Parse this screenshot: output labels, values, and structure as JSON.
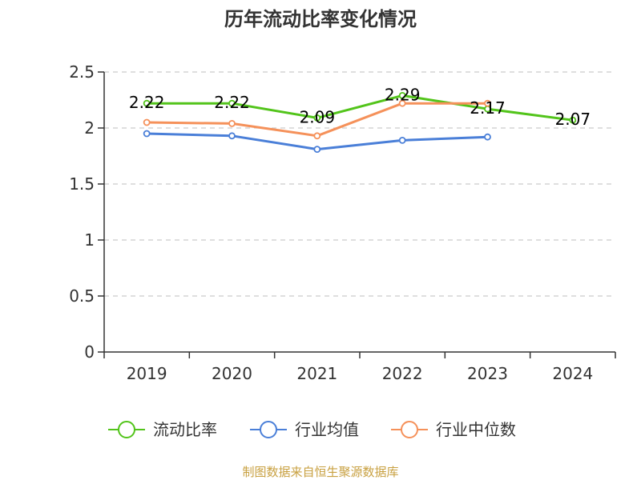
{
  "chart_data": {
    "type": "line",
    "title": "历年流动比率变化情况",
    "categories": [
      "2019",
      "2020",
      "2021",
      "2022",
      "2023",
      "2024"
    ],
    "ylim": [
      0,
      2.5
    ],
    "yticks": [
      "0",
      "0.5",
      "1",
      "1.5",
      "2",
      "2.5"
    ],
    "grid": true,
    "legend_position": "bottom",
    "series": [
      {
        "name": "流动比率",
        "color": "#52c41a",
        "values": [
          2.22,
          2.22,
          2.09,
          2.29,
          2.17,
          2.07
        ],
        "labels": [
          "2.22",
          "2.22",
          "2.09",
          "2.29",
          "2.17",
          "2.07"
        ]
      },
      {
        "name": "行业均值",
        "color": "#4a7fd8",
        "values": [
          1.95,
          1.93,
          1.81,
          1.89,
          1.92,
          null
        ]
      },
      {
        "name": "行业中位数",
        "color": "#f5915a",
        "values": [
          2.05,
          2.04,
          1.93,
          2.22,
          2.22,
          null
        ]
      }
    ]
  },
  "source": "制图数据来自恒生聚源数据库"
}
